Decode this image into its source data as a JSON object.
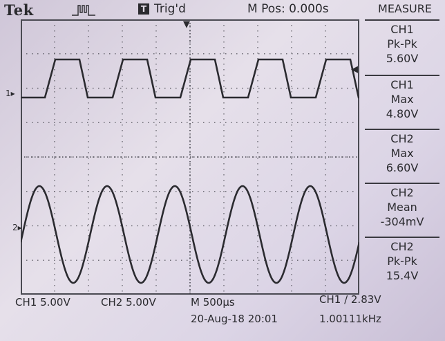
{
  "header": {
    "brand": "Tek",
    "trigger_badge": "T",
    "trigger_status": "Trig'd",
    "main_position": "M Pos: 0.000s",
    "measure_title": "MEASURE"
  },
  "measurements": [
    {
      "channel": "CH1",
      "type": "Pk-Pk",
      "value": "5.60V"
    },
    {
      "channel": "CH1",
      "type": "Max",
      "value": "4.80V"
    },
    {
      "channel": "CH2",
      "type": "Max",
      "value": "6.60V"
    },
    {
      "channel": "CH2",
      "type": "Mean",
      "value": "-304mV"
    },
    {
      "channel": "CH2",
      "type": "Pk-Pk",
      "value": "15.4V"
    }
  ],
  "footer": {
    "ch1_scale": "CH1  5.00V",
    "ch2_scale": "CH2  5.00V",
    "timebase": "M 500µs",
    "trigger_setting": "CH1 ∕ 2.83V",
    "datetime": "20-Aug-18 20:01",
    "frequency": "1.00111kHz"
  },
  "channel_markers": {
    "ch1": "1",
    "ch2": "2"
  },
  "colors": {
    "trace": "#2b2b30",
    "grid": "#4a4a52"
  }
}
